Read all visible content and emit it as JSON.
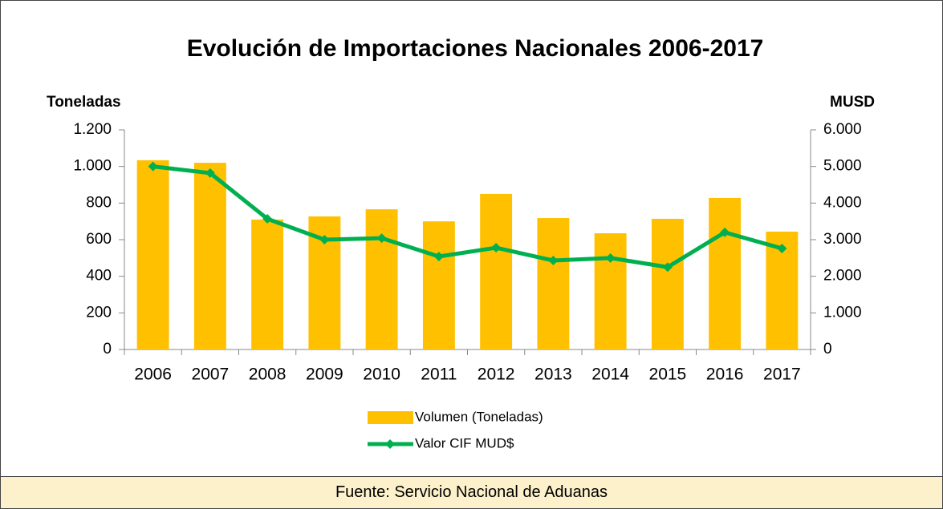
{
  "chart_data": {
    "type": "bar",
    "title": "Evolución de Importaciones Nacionales 2006-2017",
    "ylabel": "Toneladas",
    "y2label": "MUSD",
    "categories": [
      "2006",
      "2007",
      "2008",
      "2009",
      "2010",
      "2011",
      "2012",
      "2013",
      "2014",
      "2015",
      "2016",
      "2017"
    ],
    "series": [
      {
        "name": "Volumen (Toneladas)",
        "type": "bar",
        "color": "#ffc000",
        "values": [
          1034,
          1020,
          710,
          727,
          766,
          700,
          850,
          718,
          635,
          714,
          828,
          644
        ]
      },
      {
        "name": "Valor CIF MUD$",
        "type": "line",
        "axis": "y2",
        "color": "#00b050",
        "values": [
          5000,
          4820,
          3570,
          3000,
          3040,
          2540,
          2780,
          2430,
          2500,
          2250,
          3200,
          2760
        ]
      }
    ],
    "ylim": [
      0,
      1200
    ],
    "yticks": [
      0,
      200,
      400,
      600,
      800,
      {
        "value": 1000,
        "label": "1.000"
      },
      {
        "value": 1200,
        "label": "1.200"
      }
    ],
    "y2lim": [
      0,
      6000
    ],
    "y2ticks": [
      0,
      {
        "value": 1000,
        "label": "1.000"
      },
      {
        "value": 2000,
        "label": "2.000"
      },
      {
        "value": 3000,
        "label": "3.000"
      },
      {
        "value": 4000,
        "label": "4.000"
      },
      {
        "value": 5000,
        "label": "5.000"
      },
      {
        "value": 6000,
        "label": "6.000"
      }
    ],
    "source": "Fuente: Servicio Nacional de Aduanas"
  }
}
